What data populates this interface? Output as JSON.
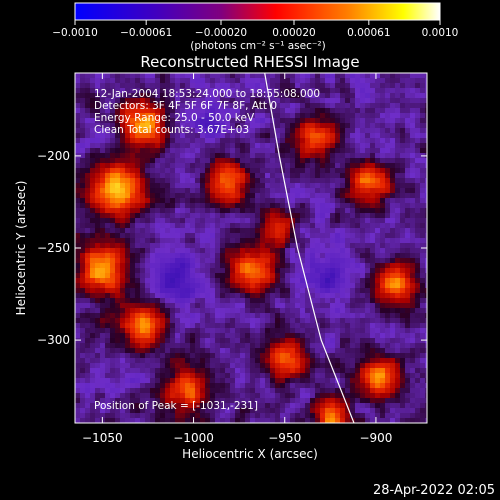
{
  "chart_data": {
    "type": "heatmap",
    "title": "Reconstructed RHESSI Image",
    "xlabel": "Heliocentric X (arcsec)",
    "ylabel": "Heliocentric Y (arcsec)",
    "xlim": [
      -1065,
      -872
    ],
    "ylim": [
      -345,
      -155
    ],
    "x_ticks": [
      -1050,
      -1000,
      -950,
      -900
    ],
    "x_tick_labels": [
      "−1050",
      "−1000",
      "−950",
      "−900"
    ],
    "y_ticks": [
      -200,
      -250,
      -300
    ],
    "y_tick_labels": [
      "−200",
      "−250",
      "−300"
    ],
    "colorbar": {
      "range": [
        -0.001,
        0.001
      ],
      "ticks": [
        -0.001,
        -0.00061,
        -0.0002,
        0.0002,
        0.00061,
        0.001
      ],
      "tick_labels": [
        "−0.0010",
        "−0.00061",
        "−0.00020",
        "0.00020",
        "0.00061",
        "0.0010"
      ],
      "unit_label": "(photons cm⁻² s⁻¹ asec⁻²)",
      "colors": [
        "#0000ff",
        "#4000c0",
        "#80007f",
        "#ff0000",
        "#ff8000",
        "#ffff00",
        "#ffffff"
      ]
    },
    "annotations": [
      "12-Jan-2004 18:53:24.000 to 18:55:08.000",
      "Detectors: 3F 4F 5F 6F 7F 8F, Att 0",
      "Energy Range: 25.0 - 50.0 keV",
      "Clean    Total counts: 3.67E+03"
    ],
    "peak_label": "Position of Peak = [-1031,-231]",
    "peak": [
      -1031,
      -231
    ],
    "limb_x_by_y": [
      [
        -155,
        -961
      ],
      [
        -200,
        -953
      ],
      [
        -250,
        -943
      ],
      [
        -300,
        -930
      ],
      [
        -345,
        -912
      ]
    ],
    "blobs": [
      {
        "x": -1042,
        "y": -218,
        "amp": 1.0,
        "r": 14
      },
      {
        "x": -1028,
        "y": -183,
        "amp": 0.9,
        "r": 11
      },
      {
        "x": -1050,
        "y": -262,
        "amp": 0.85,
        "r": 13
      },
      {
        "x": -1028,
        "y": -292,
        "amp": 0.75,
        "r": 12
      },
      {
        "x": -1005,
        "y": -328,
        "amp": 0.7,
        "r": 12
      },
      {
        "x": -982,
        "y": -215,
        "amp": 0.7,
        "r": 11
      },
      {
        "x": -968,
        "y": -262,
        "amp": 0.8,
        "r": 12
      },
      {
        "x": -950,
        "y": -310,
        "amp": 0.7,
        "r": 11
      },
      {
        "x": -935,
        "y": -190,
        "amp": 0.7,
        "r": 11
      },
      {
        "x": -905,
        "y": -215,
        "amp": 0.8,
        "r": 10
      },
      {
        "x": -890,
        "y": -270,
        "amp": 0.75,
        "r": 11
      },
      {
        "x": -900,
        "y": -320,
        "amp": 0.75,
        "r": 11
      },
      {
        "x": -925,
        "y": -340,
        "amp": 0.8,
        "r": 8
      },
      {
        "x": -955,
        "y": -240,
        "amp": 0.55,
        "r": 9
      },
      {
        "x": -1010,
        "y": -265,
        "amp": -0.35,
        "r": 14
      },
      {
        "x": -930,
        "y": -265,
        "amp": -0.3,
        "r": 13
      },
      {
        "x": -990,
        "y": -180,
        "amp": -0.25,
        "r": 10
      }
    ]
  },
  "footer": {
    "timestamp": "28-Apr-2022 02:05"
  }
}
